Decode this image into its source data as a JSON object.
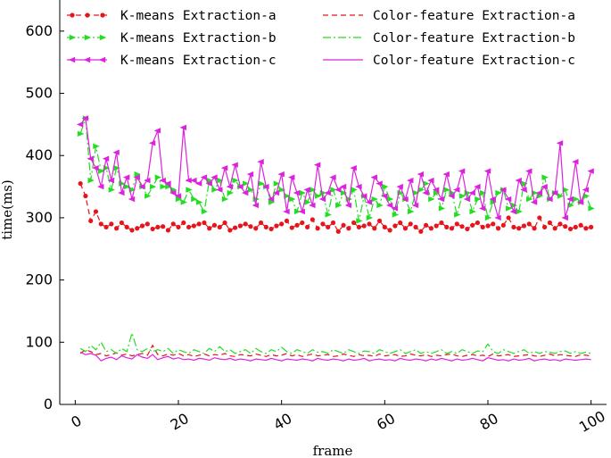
{
  "chart_data": {
    "type": "line",
    "title": "",
    "xlabel": "frame",
    "ylabel": "time(ms)",
    "xlim": [
      -3,
      103
    ],
    "ylim": [
      0,
      650
    ],
    "xticks": [
      0,
      20,
      40,
      60,
      80,
      100
    ],
    "yticks": [
      0,
      100,
      200,
      300,
      400,
      500,
      600
    ],
    "grid": false,
    "legend_position": "top",
    "series": [
      {
        "name": "K-means Extraction-a",
        "color": "#e8141b",
        "line_style": "dashed",
        "marker": "circle",
        "x": [
          1,
          2,
          3,
          4,
          5,
          6,
          7,
          8,
          9,
          10,
          11,
          12,
          13,
          14,
          15,
          16,
          17,
          18,
          19,
          20,
          21,
          22,
          23,
          24,
          25,
          26,
          27,
          28,
          29,
          30,
          31,
          32,
          33,
          34,
          35,
          36,
          37,
          38,
          39,
          40,
          41,
          42,
          43,
          44,
          45,
          46,
          47,
          48,
          49,
          50,
          51,
          52,
          53,
          54,
          55,
          56,
          57,
          58,
          59,
          60,
          61,
          62,
          63,
          64,
          65,
          66,
          67,
          68,
          69,
          70,
          71,
          72,
          73,
          74,
          75,
          76,
          77,
          78,
          79,
          80,
          81,
          82,
          83,
          84,
          85,
          86,
          87,
          88,
          89,
          90,
          91,
          92,
          93,
          94,
          95,
          96,
          97,
          98,
          99,
          100
        ],
        "y": [
          355,
          335,
          295,
          310,
          290,
          285,
          290,
          283,
          292,
          285,
          280,
          283,
          287,
          290,
          282,
          285,
          286,
          280,
          290,
          285,
          292,
          285,
          287,
          290,
          292,
          283,
          288,
          285,
          292,
          280,
          284,
          287,
          290,
          286,
          283,
          292,
          285,
          282,
          287,
          290,
          295,
          284,
          288,
          292,
          285,
          297,
          283,
          290,
          285,
          292,
          278,
          288,
          283,
          292,
          285,
          287,
          290,
          283,
          295,
          285,
          280,
          287,
          292,
          283,
          290,
          285,
          278,
          288,
          283,
          287,
          292,
          285,
          283,
          290,
          286,
          282,
          288,
          292,
          285,
          287,
          290,
          283,
          288,
          300,
          285,
          283,
          287,
          290,
          283,
          300,
          285,
          292,
          283,
          290,
          286,
          282,
          285,
          288,
          283,
          285
        ]
      },
      {
        "name": "K-means Extraction-b",
        "color": "#22dd22",
        "line_style": "dashdot",
        "marker": "triangle-right",
        "x": [
          1,
          2,
          3,
          4,
          5,
          6,
          7,
          8,
          9,
          10,
          11,
          12,
          13,
          14,
          15,
          16,
          17,
          18,
          19,
          20,
          21,
          22,
          23,
          24,
          25,
          26,
          27,
          28,
          29,
          30,
          31,
          32,
          33,
          34,
          35,
          36,
          37,
          38,
          39,
          40,
          41,
          42,
          43,
          44,
          45,
          46,
          47,
          48,
          49,
          50,
          51,
          52,
          53,
          54,
          55,
          56,
          57,
          58,
          59,
          60,
          61,
          62,
          63,
          64,
          65,
          66,
          67,
          68,
          69,
          70,
          71,
          72,
          73,
          74,
          75,
          76,
          77,
          78,
          79,
          80,
          81,
          82,
          83,
          84,
          85,
          86,
          87,
          88,
          89,
          90,
          91,
          92,
          93,
          94,
          95,
          96,
          97,
          98,
          99,
          100
        ],
        "y": [
          435,
          460,
          360,
          415,
          375,
          380,
          345,
          380,
          355,
          350,
          345,
          370,
          350,
          335,
          350,
          365,
          350,
          350,
          345,
          330,
          325,
          345,
          330,
          325,
          310,
          360,
          345,
          360,
          330,
          340,
          360,
          350,
          355,
          345,
          330,
          355,
          350,
          325,
          355,
          345,
          335,
          330,
          310,
          340,
          325,
          345,
          335,
          340,
          305,
          345,
          320,
          340,
          330,
          345,
          295,
          335,
          300,
          330,
          320,
          350,
          330,
          305,
          340,
          330,
          310,
          340,
          345,
          355,
          330,
          340,
          315,
          345,
          340,
          305,
          335,
          340,
          310,
          330,
          340,
          300,
          325,
          340,
          345,
          315,
          320,
          310,
          355,
          330,
          340,
          335,
          365,
          330,
          340,
          335,
          345,
          320,
          330,
          325,
          335,
          315
        ]
      },
      {
        "name": "K-means Extraction-c",
        "color": "#dd22dd",
        "line_style": "solid",
        "marker": "triangle-left",
        "x": [
          1,
          2,
          3,
          4,
          5,
          6,
          7,
          8,
          9,
          10,
          11,
          12,
          13,
          14,
          15,
          16,
          17,
          18,
          19,
          20,
          21,
          22,
          23,
          24,
          25,
          26,
          27,
          28,
          29,
          30,
          31,
          32,
          33,
          34,
          35,
          36,
          37,
          38,
          39,
          40,
          41,
          42,
          43,
          44,
          45,
          46,
          47,
          48,
          49,
          50,
          51,
          52,
          53,
          54,
          55,
          56,
          57,
          58,
          59,
          60,
          61,
          62,
          63,
          64,
          65,
          66,
          67,
          68,
          69,
          70,
          71,
          72,
          73,
          74,
          75,
          76,
          77,
          78,
          79,
          80,
          81,
          82,
          83,
          84,
          85,
          86,
          87,
          88,
          89,
          90,
          91,
          92,
          93,
          94,
          95,
          96,
          97,
          98,
          99,
          100
        ],
        "y": [
          450,
          460,
          395,
          380,
          350,
          395,
          360,
          405,
          340,
          365,
          330,
          365,
          350,
          360,
          420,
          440,
          360,
          355,
          340,
          335,
          445,
          360,
          360,
          355,
          365,
          355,
          365,
          345,
          380,
          350,
          385,
          350,
          340,
          370,
          320,
          390,
          350,
          330,
          340,
          370,
          310,
          365,
          340,
          310,
          345,
          320,
          385,
          330,
          340,
          365,
          345,
          350,
          320,
          380,
          350,
          335,
          325,
          365,
          355,
          335,
          320,
          315,
          350,
          330,
          360,
          320,
          370,
          340,
          360,
          345,
          330,
          370,
          335,
          345,
          375,
          330,
          340,
          350,
          315,
          375,
          330,
          300,
          345,
          330,
          310,
          360,
          345,
          375,
          325,
          340,
          350,
          330,
          340,
          420,
          300,
          330,
          390,
          325,
          345,
          375
        ]
      },
      {
        "name": "Color-feature Extraction-a",
        "color": "#e8141b",
        "line_style": "dashed",
        "marker": "none",
        "x": [
          1,
          2,
          3,
          4,
          5,
          6,
          7,
          8,
          9,
          10,
          11,
          12,
          13,
          14,
          15,
          16,
          17,
          18,
          19,
          20,
          21,
          22,
          23,
          24,
          25,
          26,
          27,
          28,
          29,
          30,
          31,
          32,
          33,
          34,
          35,
          36,
          37,
          38,
          39,
          40,
          41,
          42,
          43,
          44,
          45,
          46,
          47,
          48,
          49,
          50,
          51,
          52,
          53,
          54,
          55,
          56,
          57,
          58,
          59,
          60,
          61,
          62,
          63,
          64,
          65,
          66,
          67,
          68,
          69,
          70,
          71,
          72,
          73,
          74,
          75,
          76,
          77,
          78,
          79,
          80,
          81,
          82,
          83,
          84,
          85,
          86,
          87,
          88,
          89,
          90,
          91,
          92,
          93,
          94,
          95,
          96,
          97,
          98,
          99,
          100
        ],
        "y": [
          82,
          88,
          85,
          80,
          82,
          78,
          80,
          83,
          79,
          81,
          78,
          80,
          82,
          79,
          95,
          80,
          78,
          81,
          79,
          82,
          78,
          80,
          77,
          79,
          81,
          78,
          80,
          79,
          82,
          78,
          77,
          80,
          79,
          78,
          81,
          79,
          77,
          80,
          78,
          79,
          82,
          78,
          80,
          77,
          79,
          81,
          78,
          79,
          80,
          77,
          78,
          81,
          79,
          77,
          80,
          78,
          79,
          77,
          81,
          78,
          79,
          80,
          77,
          78,
          81,
          79,
          78,
          80,
          77,
          79,
          78,
          80,
          81,
          78,
          77,
          79,
          80,
          78,
          79,
          77,
          81,
          78,
          79,
          80,
          77,
          78,
          79,
          80,
          78,
          77,
          79,
          81,
          78,
          80,
          79,
          78,
          77,
          80,
          79,
          78
        ]
      },
      {
        "name": "Color-feature Extraction-b",
        "color": "#22dd22",
        "line_style": "dashdot",
        "marker": "none",
        "x": [
          1,
          2,
          3,
          4,
          5,
          6,
          7,
          8,
          9,
          10,
          11,
          12,
          13,
          14,
          15,
          16,
          17,
          18,
          19,
          20,
          21,
          22,
          23,
          24,
          25,
          26,
          27,
          28,
          29,
          30,
          31,
          32,
          33,
          34,
          35,
          36,
          37,
          38,
          39,
          40,
          41,
          42,
          43,
          44,
          45,
          46,
          47,
          48,
          49,
          50,
          51,
          52,
          53,
          54,
          55,
          56,
          57,
          58,
          59,
          60,
          61,
          62,
          63,
          64,
          65,
          66,
          67,
          68,
          69,
          70,
          71,
          72,
          73,
          74,
          75,
          76,
          77,
          78,
          79,
          80,
          81,
          82,
          83,
          84,
          85,
          86,
          87,
          88,
          89,
          90,
          91,
          92,
          93,
          94,
          95,
          96,
          97,
          98,
          99,
          100
        ],
        "y": [
          90,
          85,
          95,
          88,
          100,
          85,
          88,
          82,
          90,
          85,
          115,
          88,
          85,
          90,
          85,
          88,
          85,
          90,
          82,
          88,
          85,
          82,
          88,
          85,
          82,
          90,
          85,
          93,
          85,
          88,
          82,
          85,
          88,
          82,
          90,
          85,
          82,
          88,
          85,
          92,
          85,
          82,
          88,
          85,
          82,
          88,
          84,
          85,
          82,
          88,
          85,
          82,
          88,
          85,
          82,
          86,
          85,
          82,
          88,
          85,
          82,
          85,
          88,
          82,
          85,
          88,
          82,
          85,
          82,
          85,
          88,
          82,
          85,
          82,
          88,
          85,
          82,
          86,
          85,
          97,
          85,
          82,
          88,
          85,
          82,
          85,
          88,
          82,
          85,
          82,
          85,
          84,
          82,
          85,
          86,
          82,
          85,
          82,
          84,
          82
        ]
      },
      {
        "name": "Color-feature Extraction-c",
        "color": "#dd22dd",
        "line_style": "solid",
        "marker": "none",
        "x": [
          1,
          2,
          3,
          4,
          5,
          6,
          7,
          8,
          9,
          10,
          11,
          12,
          13,
          14,
          15,
          16,
          17,
          18,
          19,
          20,
          21,
          22,
          23,
          24,
          25,
          26,
          27,
          28,
          29,
          30,
          31,
          32,
          33,
          34,
          35,
          36,
          37,
          38,
          39,
          40,
          41,
          42,
          43,
          44,
          45,
          46,
          47,
          48,
          49,
          50,
          51,
          52,
          53,
          54,
          55,
          56,
          57,
          58,
          59,
          60,
          61,
          62,
          63,
          64,
          65,
          66,
          67,
          68,
          69,
          70,
          71,
          72,
          73,
          74,
          75,
          76,
          77,
          78,
          79,
          80,
          81,
          82,
          83,
          84,
          85,
          86,
          87,
          88,
          89,
          90,
          91,
          92,
          93,
          94,
          95,
          96,
          97,
          98,
          99,
          100
        ],
        "y": [
          84,
          80,
          82,
          79,
          70,
          74,
          76,
          72,
          78,
          75,
          73,
          80,
          76,
          74,
          80,
          72,
          75,
          77,
          73,
          75,
          72,
          73,
          71,
          74,
          73,
          71,
          75,
          73,
          72,
          74,
          71,
          73,
          72,
          70,
          73,
          72,
          71,
          74,
          72,
          70,
          73,
          72,
          71,
          73,
          72,
          70,
          74,
          72,
          71,
          73,
          72,
          70,
          73,
          71,
          72,
          74,
          70,
          72,
          73,
          71,
          72,
          70,
          74,
          72,
          71,
          73,
          72,
          70,
          73,
          71,
          74,
          72,
          70,
          73,
          71,
          72,
          74,
          72,
          70,
          75,
          73,
          71,
          72,
          70,
          73,
          71,
          72,
          74,
          70,
          72,
          73,
          71,
          72,
          70,
          73,
          72,
          71,
          72,
          73,
          72
        ]
      }
    ]
  }
}
